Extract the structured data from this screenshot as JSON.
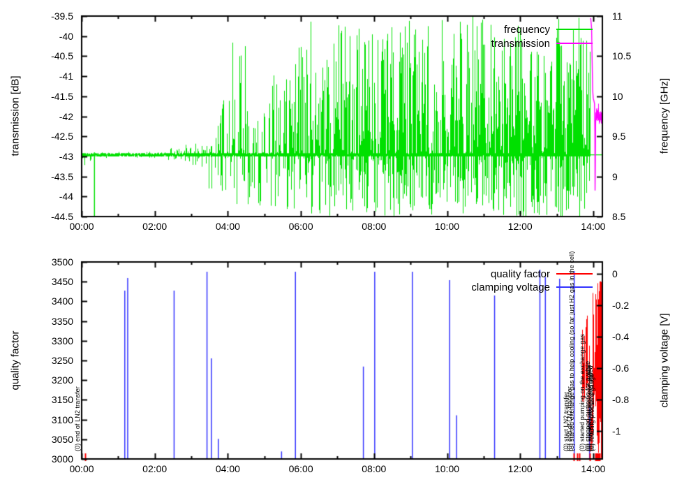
{
  "figure": {
    "background": "#ffffff",
    "description": "gnuplot-style dual-panel time-series figure"
  },
  "chart_data": [
    {
      "type": "line",
      "title": "",
      "x_axis": {
        "label": "",
        "tick_labels": [
          "00:00",
          "02:00",
          "04:00",
          "06:00",
          "08:00",
          "10:00",
          "12:00",
          "14:00"
        ],
        "tick_hours": [
          0,
          2,
          4,
          6,
          8,
          10,
          12,
          14
        ],
        "minor_every_hours": 1,
        "range_hours": [
          0,
          14.25
        ]
      },
      "y_left": {
        "label": "transmission [dB]",
        "tick_labels": [
          "-39.5",
          "-40",
          "-40.5",
          "-41",
          "-41.5",
          "-42",
          "-42.5",
          "-43",
          "-43.5",
          "-44",
          "-44.5"
        ],
        "range": [
          -44.5,
          -39.5
        ]
      },
      "y_right": {
        "label": "frequency [GHz]",
        "tick_labels": [
          "11",
          "10.5",
          "10",
          "9.5",
          "9",
          "8.5"
        ],
        "range": [
          8.5,
          11
        ]
      },
      "legend_position": "top-right-inside",
      "legend": [
        {
          "label": "frequency",
          "color": "#00e000"
        },
        {
          "label": "transmission",
          "color": "#ff00ff"
        }
      ],
      "series": {
        "frequency": {
          "axis": "right",
          "color": "#00e000",
          "baseline_ghz": 9.27,
          "noise_envelope_t0_t1_lo_hi_density": [
            [
              0.0,
              0.3,
              9.13,
              9.3,
              0.7
            ],
            [
              0.3,
              0.42,
              9.22,
              9.3,
              0.5
            ],
            [
              0.42,
              2.35,
              9.23,
              9.31,
              0.4
            ],
            [
              2.35,
              2.9,
              9.16,
              9.4,
              0.5
            ],
            [
              2.9,
              3.45,
              9.12,
              9.42,
              0.6
            ],
            [
              3.45,
              3.8,
              8.75,
              9.7,
              0.6
            ],
            [
              3.8,
              4.05,
              8.5,
              10.0,
              0.65
            ],
            [
              4.05,
              4.22,
              8.5,
              10.9,
              0.7
            ],
            [
              4.22,
              4.55,
              8.5,
              10.7,
              0.7
            ],
            [
              4.55,
              5.2,
              8.52,
              10.05,
              0.65
            ],
            [
              5.2,
              5.8,
              8.5,
              10.35,
              0.7
            ],
            [
              5.8,
              6.35,
              8.5,
              11.0,
              0.75
            ],
            [
              6.35,
              6.7,
              8.5,
              10.45,
              0.75
            ],
            [
              6.7,
              7.7,
              8.5,
              11.0,
              0.85
            ],
            [
              7.7,
              9.4,
              8.5,
              11.0,
              0.9
            ],
            [
              9.4,
              10.5,
              8.5,
              10.95,
              0.88
            ],
            [
              10.5,
              11.6,
              8.5,
              11.0,
              0.9
            ],
            [
              11.6,
              12.3,
              8.5,
              11.0,
              0.92
            ],
            [
              12.3,
              13.55,
              8.5,
              11.0,
              0.97
            ],
            [
              13.55,
              13.92,
              8.5,
              11.0,
              1.0
            ]
          ],
          "dip_events_t_lo_hi": [
            [
              0.35,
              8.5,
              9.3
            ]
          ],
          "flat_tail_t0_t1_value": [
            13.92,
            14.25,
            9.27
          ]
        },
        "transmission": {
          "axis": "left",
          "color": "#ff00ff",
          "points_t_db": [
            [
              13.93,
              -39.55
            ],
            [
              13.955,
              -39.8
            ],
            [
              13.97,
              -40.6
            ],
            [
              13.985,
              -41.35
            ],
            [
              14.0,
              -41.55
            ],
            [
              14.02,
              -41.62
            ],
            [
              14.035,
              -41.68
            ],
            [
              14.045,
              -42.4
            ],
            [
              14.05,
              -43.85
            ],
            [
              14.058,
              -43.2
            ],
            [
              14.065,
              -42.2
            ],
            [
              14.075,
              -41.9
            ],
            [
              14.09,
              -42.1
            ],
            [
              14.105,
              -41.85
            ],
            [
              14.12,
              -42.05
            ],
            [
              14.135,
              -41.8
            ],
            [
              14.15,
              -42.1
            ],
            [
              14.165,
              -41.9
            ],
            [
              14.18,
              -42.15
            ],
            [
              14.195,
              -41.95
            ],
            [
              14.21,
              -42.1
            ],
            [
              14.225,
              -41.9
            ],
            [
              14.24,
              -42.05
            ],
            [
              14.25,
              -41.95
            ]
          ],
          "noise_after_t": 14.07,
          "noise_amp_db": 0.15
        }
      }
    },
    {
      "type": "line",
      "title": "",
      "x_axis": {
        "label": "",
        "tick_labels": [
          "00:00",
          "02:00",
          "04:00",
          "06:00",
          "08:00",
          "10:00",
          "12:00",
          "14:00"
        ],
        "tick_hours": [
          0,
          2,
          4,
          6,
          8,
          10,
          12,
          14
        ],
        "minor_every_hours": 1,
        "range_hours": [
          0,
          14.25
        ]
      },
      "y_left": {
        "label": "quality factor",
        "tick_labels": [
          "3500",
          "3450",
          "3400",
          "3350",
          "3300",
          "3250",
          "3200",
          "3150",
          "3100",
          "3050",
          "3000"
        ],
        "range": [
          3000,
          3500
        ]
      },
      "y_right": {
        "label": "clamping voltage [V]",
        "tick_labels": [
          "0",
          "-0.2",
          "-0.4",
          "-0.6",
          "-0.8",
          "-1"
        ],
        "range": [
          -1.178,
          0.076
        ]
      },
      "legend_position": "top-right-inside",
      "legend": [
        {
          "label": "quality factor",
          "color": "#ff0000"
        },
        {
          "label": "clamping voltage",
          "color": "#3333ff"
        }
      ],
      "series": {
        "quality_factor": {
          "axis": "left",
          "color": "#ff0000",
          "noise_envelope_t0_t1_lo_hi_density": [
            [
              13.68,
              13.76,
              3140,
              3330,
              0.9
            ],
            [
              13.76,
              13.83,
              3180,
              3365,
              0.95
            ],
            [
              13.83,
              13.9,
              3060,
              3300,
              0.9
            ],
            [
              13.9,
              13.97,
              3015,
              3180,
              0.9
            ],
            [
              13.97,
              14.04,
              3050,
              3430,
              0.95
            ],
            [
              14.04,
              14.25,
              3000,
              3465,
              1.0
            ]
          ]
        },
        "clamping_voltage": {
          "axis": "right",
          "color": "#3333ff",
          "spike_base_v": -1.178,
          "spikes_t_topv": [
            [
              1.18,
              -0.106
            ],
            [
              1.26,
              -0.026
            ],
            [
              2.53,
              -0.106
            ],
            [
              3.43,
              0.014
            ],
            [
              3.55,
              -0.538
            ],
            [
              3.74,
              -1.05
            ],
            [
              5.47,
              -1.13
            ],
            [
              5.85,
              0.014
            ],
            [
              7.71,
              -0.59
            ],
            [
              8.02,
              0.014
            ],
            [
              9.05,
              0.014
            ],
            [
              10.07,
              -0.04
            ],
            [
              10.26,
              -0.9
            ],
            [
              11.3,
              -0.137
            ],
            [
              12.54,
              0.027
            ],
            [
              12.69,
              -0.02
            ],
            [
              13.08,
              -0.031
            ],
            [
              13.48,
              0.018
            ],
            [
              13.9,
              -0.83
            ]
          ]
        }
      },
      "annotations": {
        "marker_color": "#ff0000",
        "items": [
          {
            "t": 0.09,
            "text": "(0) end of LN2 transfer"
          },
          {
            "t": 13.47,
            "text": "(0) start LN2 transfer"
          },
          {
            "t": 13.56,
            "text": "(0) end of LN2 transfer"
          },
          {
            "t": 13.62,
            "text": "(0) started exchange gas to help cooling (so far just H2 gas in the cell)"
          },
          {
            "t": 13.9,
            "text": "(0) started pumping on the exchange gas"
          },
          {
            "t": 14.06,
            "text": "(0) stopped pumping for a while"
          },
          {
            "t": 14.1,
            "text": "(0) started cooling down again"
          },
          {
            "t": 14.14,
            "text": "(0) more exchange gas added"
          },
          {
            "t": 14.18,
            "text": "(0) reading pressure gauge"
          }
        ]
      }
    }
  ]
}
